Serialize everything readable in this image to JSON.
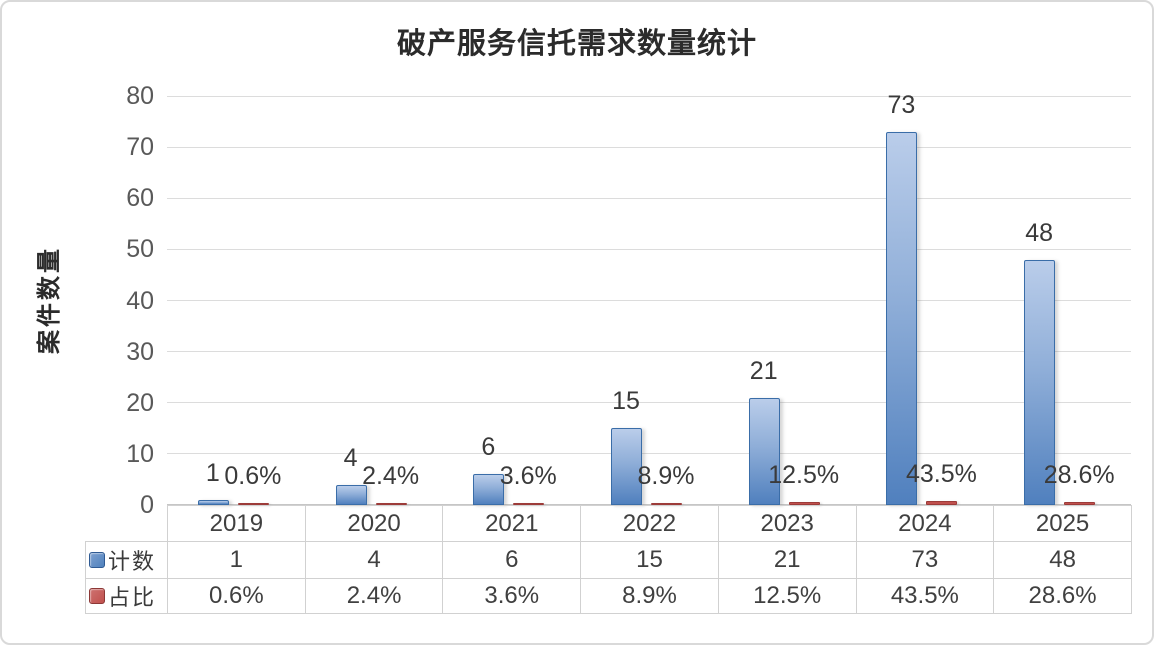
{
  "frame": {
    "background": "#FFFFFF",
    "border_color": "#D9D9D9"
  },
  "chart_data": {
    "type": "bar",
    "title": "破产服务信托需求数量统计",
    "ylabel": "案件数量",
    "xlabel": "",
    "categories": [
      "2019",
      "2020",
      "2021",
      "2022",
      "2023",
      "2024",
      "2025"
    ],
    "series": [
      {
        "key": "count",
        "name": "计数",
        "values": [
          1,
          4,
          6,
          15,
          21,
          73,
          48
        ],
        "labels": [
          "1",
          "4",
          "6",
          "15",
          "21",
          "73",
          "48"
        ],
        "color": "#4F81BD",
        "border_color": "#3A6DA8"
      },
      {
        "key": "ratio",
        "name": "占比",
        "unit": "%",
        "values": [
          0.6,
          2.4,
          3.6,
          8.9,
          12.5,
          43.5,
          28.6
        ],
        "labels": [
          "0.6%",
          "2.4%",
          "3.6%",
          "8.9%",
          "12.5%",
          "43.5%",
          "28.6%"
        ],
        "color": "#C0504D",
        "border_color": "#9C3B39"
      }
    ],
    "ylim": [
      0,
      80
    ],
    "y_ticks": [
      "0",
      "10",
      "20",
      "30",
      "40",
      "50",
      "60",
      "70",
      "80"
    ],
    "grid": true,
    "legend_position": "data-table-left",
    "gridline_color": "#DCDCDC",
    "tick_label_color": "#595959",
    "data_table": {
      "row_headers": [
        "计数",
        "占比"
      ],
      "rows": [
        [
          "1",
          "4",
          "6",
          "15",
          "21",
          "73",
          "48"
        ],
        [
          "0.6%",
          "2.4%",
          "3.6%",
          "8.9%",
          "12.5%",
          "43.5%",
          "28.6%"
        ]
      ]
    }
  }
}
